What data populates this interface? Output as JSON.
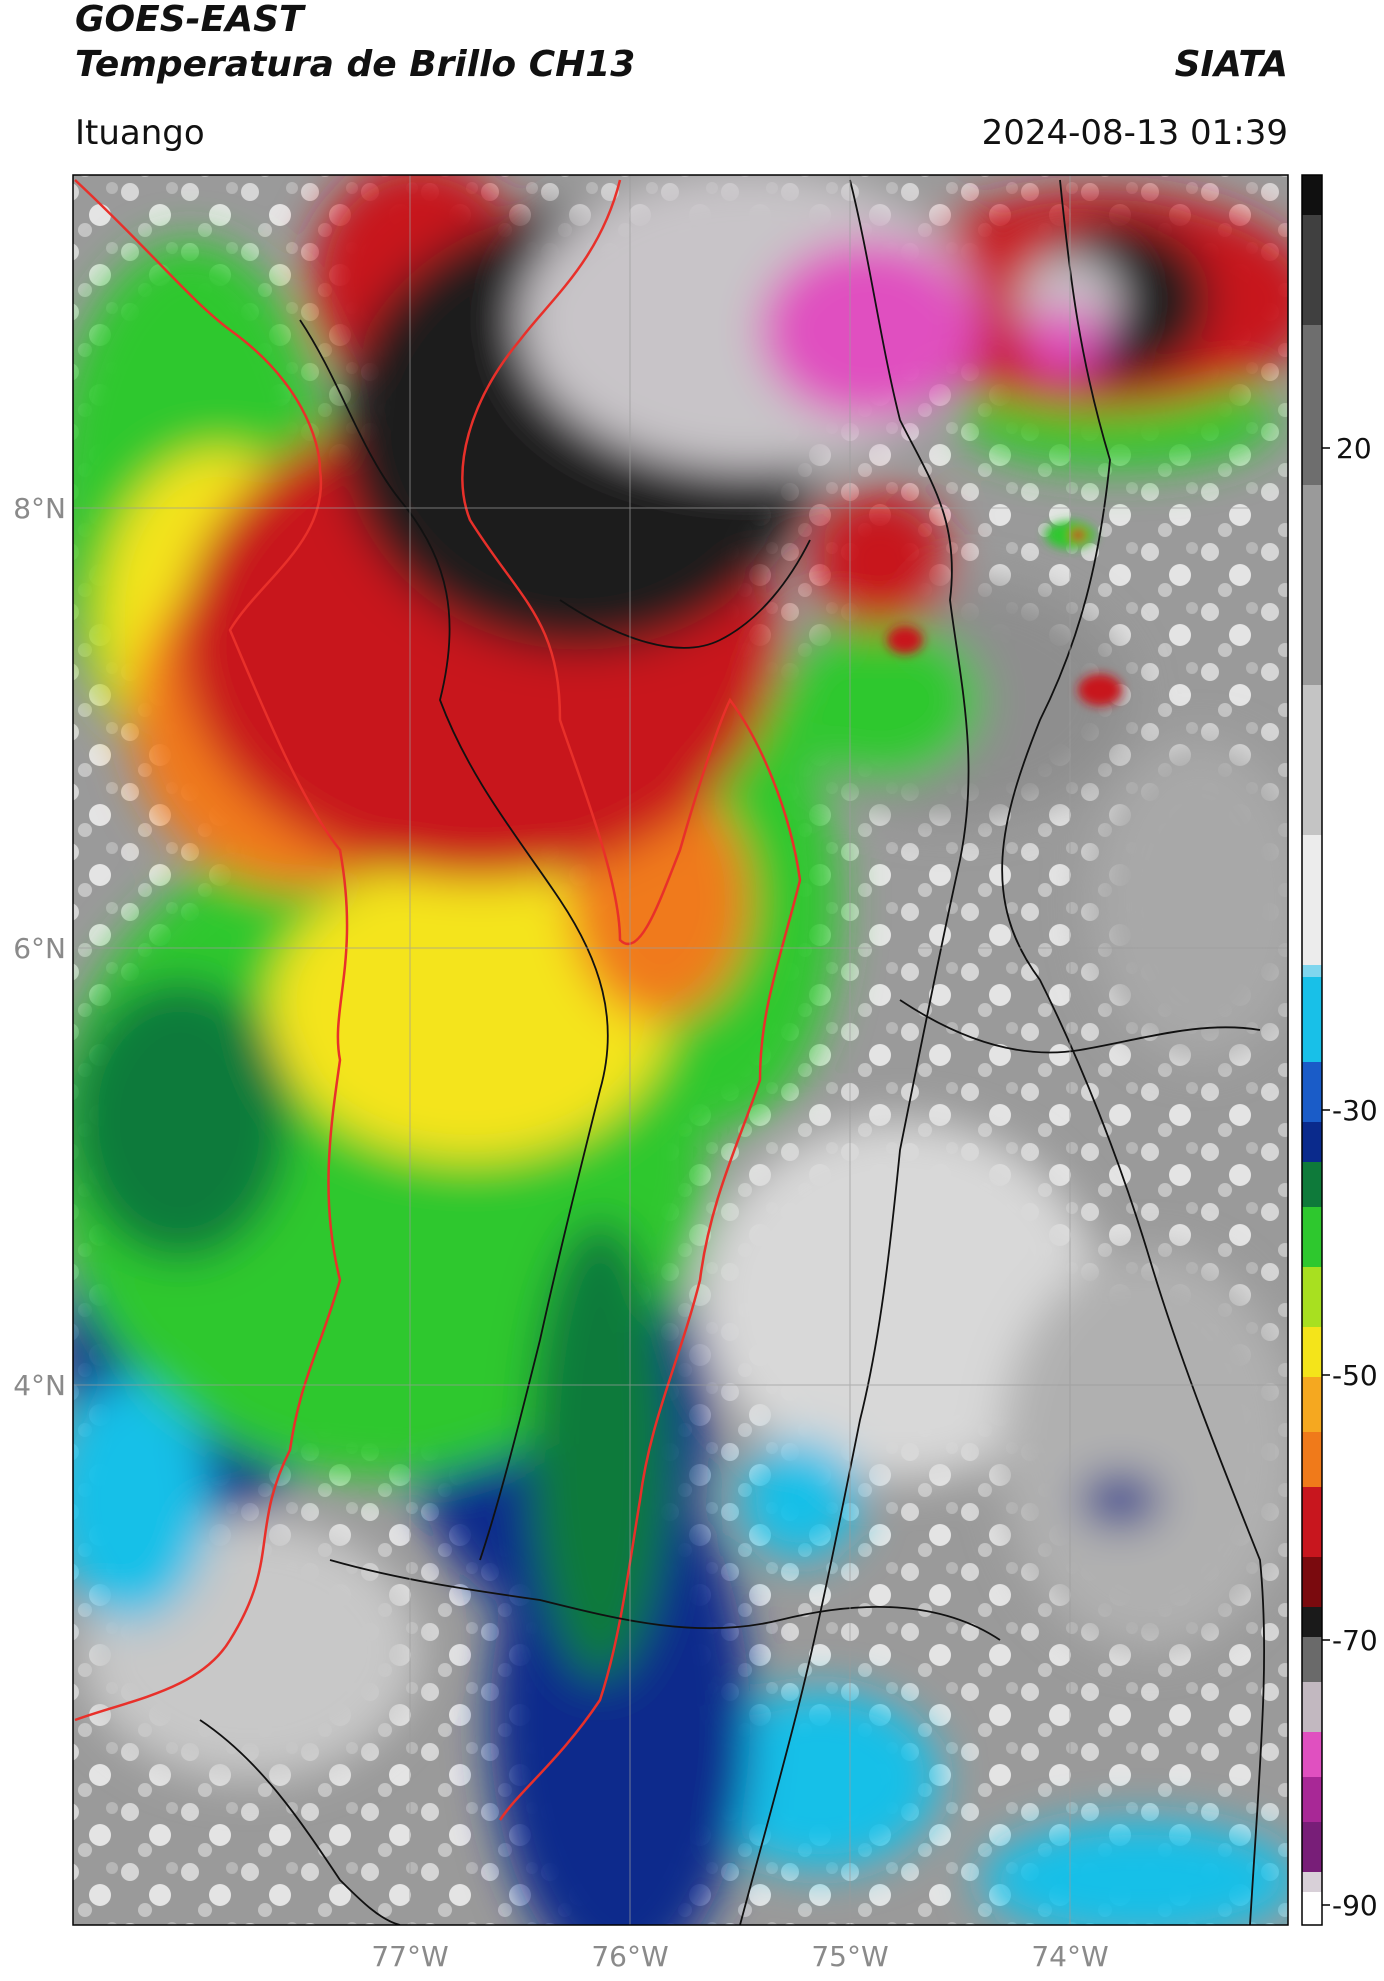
{
  "header": {
    "satellite": "GOES-EAST",
    "product": "Temperatura de Brillo CH13",
    "brand": "SIATA",
    "location": "Ituango",
    "datetime": "2024-08-13 01:39"
  },
  "map": {
    "lat_labels": [
      "8°N",
      "6°N",
      "4°N"
    ],
    "lon_labels": [
      "77°W",
      "76°W",
      "75°W",
      "74°W"
    ],
    "lat_range": [
      1.0,
      9.5
    ],
    "lon_range": [
      -78.5,
      -73.0
    ],
    "grid": true
  },
  "colorbar": {
    "tick_labels": [
      "20",
      "-30",
      "-50",
      "-70",
      "-90"
    ],
    "range": [
      -92,
      40
    ],
    "colors": {
      "magenta": "#e050c0",
      "black": "#1a1a1a",
      "red": "#c8161e",
      "orange": "#f07a1a",
      "yellow": "#f4e41a",
      "green": "#2ec82e",
      "dark_green": "#0e7a3a",
      "navy": "#0a2a8c",
      "cyan": "#18c0e8",
      "gray": "#8c8c8c"
    }
  }
}
